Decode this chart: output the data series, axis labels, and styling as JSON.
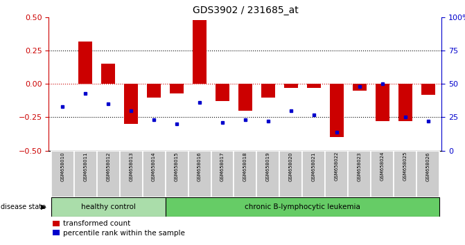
{
  "title": "GDS3902 / 231685_at",
  "samples": [
    "GSM658010",
    "GSM658011",
    "GSM658012",
    "GSM658013",
    "GSM658014",
    "GSM658015",
    "GSM658016",
    "GSM658017",
    "GSM658018",
    "GSM658019",
    "GSM658020",
    "GSM658021",
    "GSM658022",
    "GSM658023",
    "GSM658024",
    "GSM658025",
    "GSM658026"
  ],
  "red_bars": [
    0.0,
    0.32,
    0.15,
    -0.3,
    -0.1,
    -0.07,
    0.48,
    -0.13,
    -0.2,
    -0.1,
    -0.03,
    -0.03,
    -0.4,
    -0.05,
    -0.28,
    -0.28,
    -0.08
  ],
  "blue_pct": [
    33,
    43,
    35,
    30,
    23,
    20,
    36,
    21,
    23,
    22,
    30,
    27,
    14,
    48,
    50,
    25,
    22
  ],
  "ylim": [
    -0.5,
    0.5
  ],
  "yticks_red": [
    -0.5,
    -0.25,
    0.0,
    0.25,
    0.5
  ],
  "yticks_blue_vals": [
    0,
    25,
    50,
    75,
    100
  ],
  "hlines": [
    0.25,
    -0.25
  ],
  "red_line_y": 0.0,
  "n_healthy": 5,
  "healthy_label": "healthy control",
  "leukemia_label": "chronic B-lymphocytic leukemia",
  "disease_state_label": "disease state",
  "legend_red": "transformed count",
  "legend_blue": "percentile rank within the sample",
  "bar_color": "#cc0000",
  "dot_color": "#0000cc",
  "healthy_bg": "#aaddaa",
  "leukemia_bg": "#66cc66",
  "tick_label_bg": "#cccccc",
  "bar_width": 0.6
}
